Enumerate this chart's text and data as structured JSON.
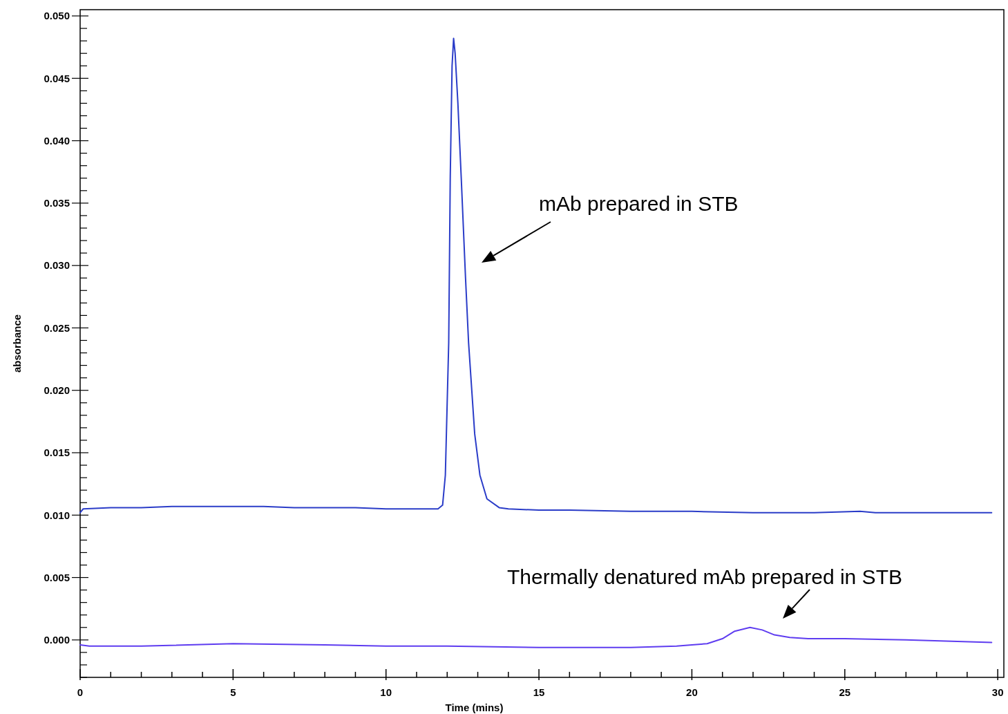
{
  "chart_data": {
    "type": "line",
    "xlabel": "Time (mins)",
    "ylabel": "absorbance",
    "xlim": [
      0,
      30.2
    ],
    "ylim": [
      -0.003,
      0.0505
    ],
    "xticks": [
      0,
      {
        "value": 1,
        "label": null
      },
      {
        "value": 2,
        "label": null
      },
      {
        "value": 3,
        "label": null
      },
      {
        "value": 4,
        "label": null
      },
      5,
      {
        "value": 6,
        "label": null
      },
      {
        "value": 7,
        "label": null
      },
      {
        "value": 8,
        "label": null
      },
      {
        "value": 9,
        "label": null
      },
      10,
      {
        "value": 11,
        "label": null
      },
      {
        "value": 12,
        "label": null
      },
      {
        "value": 13,
        "label": null
      },
      {
        "value": 14,
        "label": null
      },
      15,
      {
        "value": 16,
        "label": null
      },
      {
        "value": 17,
        "label": null
      },
      {
        "value": 18,
        "label": null
      },
      {
        "value": 19,
        "label": null
      },
      20,
      {
        "value": 21,
        "label": null
      },
      {
        "value": 22,
        "label": null
      },
      {
        "value": 23,
        "label": null
      },
      {
        "value": 24,
        "label": null
      },
      25,
      {
        "value": 26,
        "label": null
      },
      {
        "value": 27,
        "label": null
      },
      {
        "value": 28,
        "label": null
      },
      {
        "value": 29,
        "label": null
      },
      30
    ],
    "yticks": [
      {
        "value": -0.003,
        "label": null
      },
      {
        "value": -0.002,
        "label": null
      },
      {
        "value": -0.001,
        "label": null
      },
      {
        "value": 0,
        "label": "0.000"
      },
      {
        "value": 0.001,
        "label": null
      },
      {
        "value": 0.002,
        "label": null
      },
      {
        "value": 0.003,
        "label": null
      },
      {
        "value": 0.004,
        "label": null
      },
      {
        "value": 0.005,
        "label": "0.005"
      },
      {
        "value": 0.006,
        "label": null
      },
      {
        "value": 0.007,
        "label": null
      },
      {
        "value": 0.008,
        "label": null
      },
      {
        "value": 0.009,
        "label": null
      },
      {
        "value": 0.01,
        "label": "0.010"
      },
      {
        "value": 0.011,
        "label": null
      },
      {
        "value": 0.012,
        "label": null
      },
      {
        "value": 0.013,
        "label": null
      },
      {
        "value": 0.014,
        "label": null
      },
      {
        "value": 0.015,
        "label": "0.015"
      },
      {
        "value": 0.016,
        "label": null
      },
      {
        "value": 0.017,
        "label": null
      },
      {
        "value": 0.018,
        "label": null
      },
      {
        "value": 0.019,
        "label": null
      },
      {
        "value": 0.02,
        "label": "0.020"
      },
      {
        "value": 0.021,
        "label": null
      },
      {
        "value": 0.022,
        "label": null
      },
      {
        "value": 0.023,
        "label": null
      },
      {
        "value": 0.024,
        "label": null
      },
      {
        "value": 0.025,
        "label": "0.025"
      },
      {
        "value": 0.026,
        "label": null
      },
      {
        "value": 0.027,
        "label": null
      },
      {
        "value": 0.028,
        "label": null
      },
      {
        "value": 0.029,
        "label": null
      },
      {
        "value": 0.03,
        "label": "0.030"
      },
      {
        "value": 0.031,
        "label": null
      },
      {
        "value": 0.032,
        "label": null
      },
      {
        "value": 0.033,
        "label": null
      },
      {
        "value": 0.034,
        "label": null
      },
      {
        "value": 0.035,
        "label": "0.035"
      },
      {
        "value": 0.036,
        "label": null
      },
      {
        "value": 0.037,
        "label": null
      },
      {
        "value": 0.038,
        "label": null
      },
      {
        "value": 0.039,
        "label": null
      },
      {
        "value": 0.04,
        "label": "0.040"
      },
      {
        "value": 0.041,
        "label": null
      },
      {
        "value": 0.042,
        "label": null
      },
      {
        "value": 0.043,
        "label": null
      },
      {
        "value": 0.044,
        "label": null
      },
      {
        "value": 0.045,
        "label": "0.045"
      },
      {
        "value": 0.046,
        "label": null
      },
      {
        "value": 0.047,
        "label": null
      },
      {
        "value": 0.048,
        "label": null
      },
      {
        "value": 0.049,
        "label": null
      },
      {
        "value": 0.05,
        "label": "0.050"
      }
    ],
    "series": [
      {
        "color": "#2a3cc8",
        "x": [
          0,
          0.1,
          1,
          2,
          3,
          4,
          5,
          6,
          7,
          8,
          9,
          10,
          11,
          11.7,
          11.85,
          11.94,
          12.0,
          12.05,
          12.1,
          12.16,
          12.21,
          12.26,
          12.35,
          12.46,
          12.6,
          12.7,
          12.9,
          13.07,
          13.3,
          13.7,
          14,
          15,
          16,
          18,
          20,
          22,
          24,
          25.5,
          26,
          28,
          29.8
        ],
        "values": [
          0.0102,
          0.0105,
          0.0106,
          0.0106,
          0.0107,
          0.0107,
          0.0107,
          0.0107,
          0.0106,
          0.0106,
          0.0106,
          0.0105,
          0.0105,
          0.0105,
          0.0108,
          0.0132,
          0.019,
          0.0238,
          0.037,
          0.046,
          0.0482,
          0.047,
          0.043,
          0.037,
          0.029,
          0.0238,
          0.0165,
          0.0132,
          0.0113,
          0.0106,
          0.0105,
          0.0104,
          0.0104,
          0.0103,
          0.0103,
          0.0102,
          0.0102,
          0.0103,
          0.0102,
          0.0102,
          0.0102
        ]
      },
      {
        "color": "#5e3cf0",
        "x": [
          0,
          0.3,
          2,
          5,
          8,
          10,
          12,
          15,
          18,
          19.5,
          20,
          20.5,
          21,
          21.4,
          21.9,
          22.3,
          22.7,
          23.2,
          23.8,
          25,
          27,
          29.8
        ],
        "values": [
          -0.0004,
          -0.0005,
          -0.0005,
          -0.0003,
          -0.0004,
          -0.0005,
          -0.0005,
          -0.0006,
          -0.0006,
          -0.0005,
          -0.0004,
          -0.0003,
          0.0001,
          0.0007,
          0.001,
          0.0008,
          0.0004,
          0.0002,
          0.0001,
          0.0001,
          0.0,
          -0.0002
        ]
      }
    ],
    "annotations": [
      "mAb prepared in STB",
      "Thermally denatured mAb prepared in STB"
    ]
  }
}
